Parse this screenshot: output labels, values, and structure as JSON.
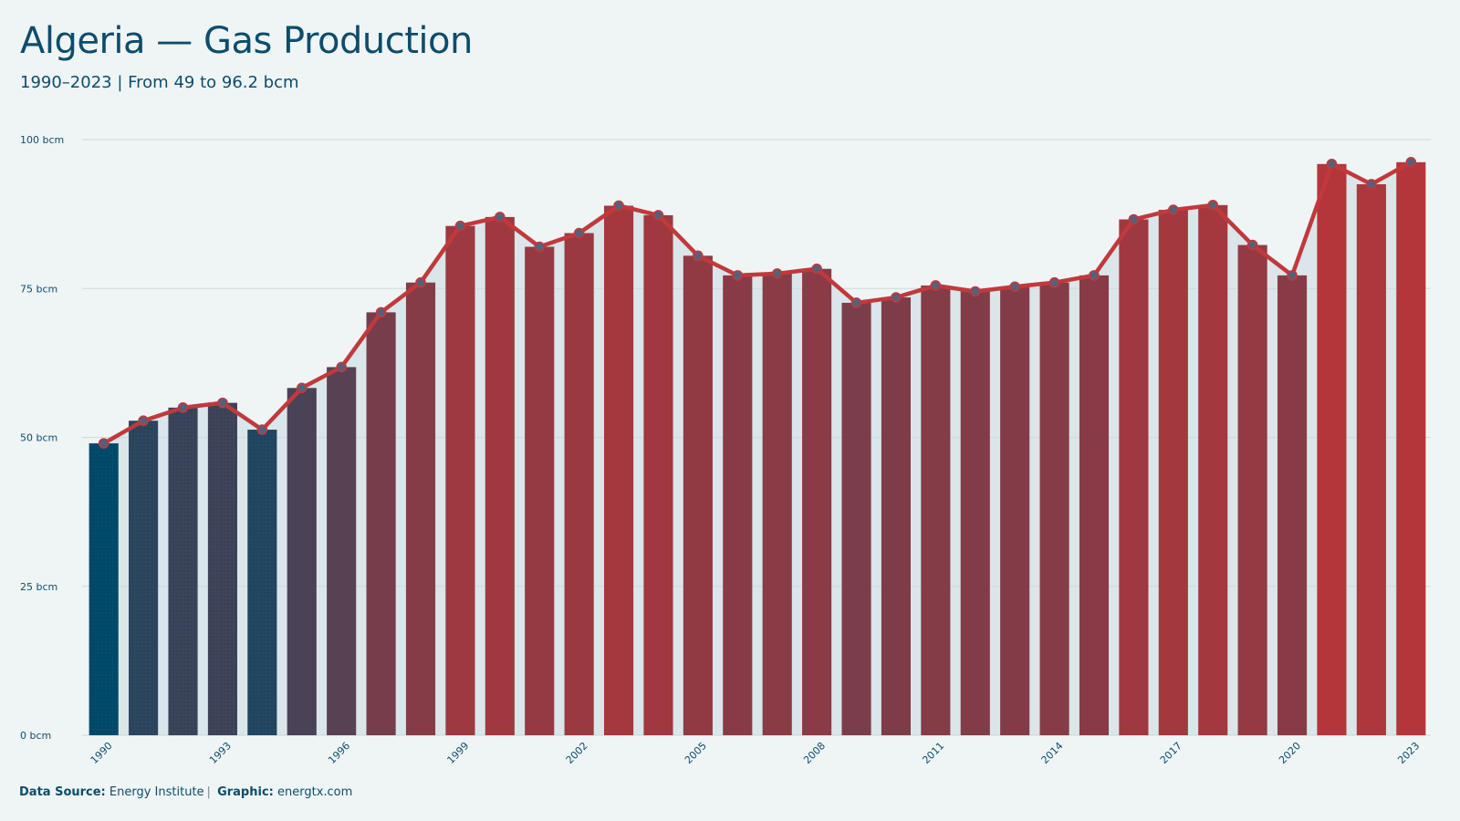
{
  "header": {
    "title": "Algeria — Gas Production",
    "subtitle": "1990–2023 | From 49 to 96.2 bcm"
  },
  "footer": {
    "source_label": "Data Source:",
    "source_value": "Energy Institute",
    "graphic_label": "Graphic:",
    "graphic_value": "energtx.com"
  },
  "colors": {
    "background": "#eff5f5",
    "low": "#004b6b",
    "high": "#b5363a",
    "line": "#c1393b",
    "gridline": "#d4dee1",
    "text": "#0d4d6c"
  },
  "chart_data": {
    "type": "bar",
    "x": [
      1990,
      1991,
      1992,
      1993,
      1994,
      1995,
      1996,
      1997,
      1998,
      1999,
      2000,
      2001,
      2002,
      2003,
      2004,
      2005,
      2006,
      2007,
      2008,
      2009,
      2010,
      2011,
      2012,
      2013,
      2014,
      2015,
      2016,
      2017,
      2018,
      2019,
      2020,
      2021,
      2022,
      2023
    ],
    "values": [
      49.0,
      52.8,
      55.0,
      55.8,
      51.3,
      58.3,
      61.8,
      71.0,
      76.0,
      85.5,
      87.0,
      82.0,
      84.3,
      88.9,
      87.3,
      80.5,
      77.2,
      77.5,
      78.3,
      72.6,
      73.5,
      75.5,
      74.5,
      75.3,
      76.0,
      77.2,
      86.6,
      88.2,
      89.0,
      82.3,
      77.2,
      95.9,
      92.5,
      96.2
    ],
    "line_overlay": true,
    "y_ticks": [
      "0 bcm",
      "25 bcm",
      "50 bcm",
      "75 bcm",
      "100 bcm"
    ],
    "y_tick_values": [
      0,
      25,
      50,
      75,
      100
    ],
    "x_tick_labels": [
      "1990",
      "1993",
      "1996",
      "1999",
      "2002",
      "2005",
      "2008",
      "2011",
      "2014",
      "2017",
      "2020",
      "2023"
    ],
    "ylim": [
      0,
      100
    ],
    "xlabel": "",
    "ylabel": "",
    "grid": true
  }
}
